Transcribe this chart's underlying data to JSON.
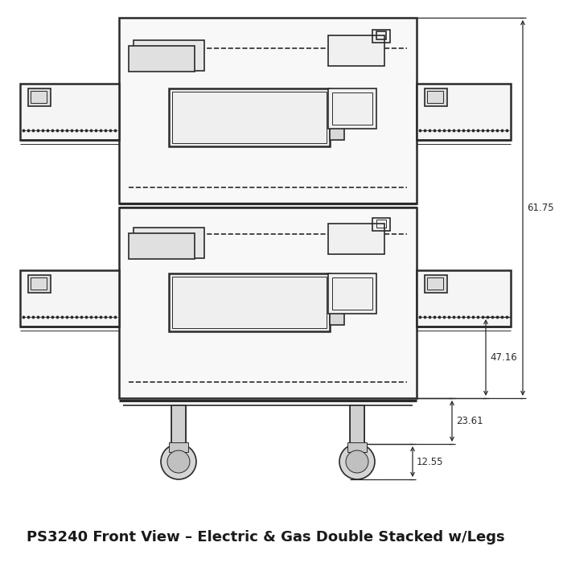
{
  "title": "PS3240 Front View – Electric & Gas Double Stacked w/Legs",
  "title_fontsize": 13,
  "bg_color": "#ffffff",
  "line_color": "#2a2a2a",
  "dim_color": "#2a2a2a",
  "lw_outer": 1.8,
  "lw_inner": 1.2,
  "lw_thin": 0.7,
  "lw_dim": 0.9
}
